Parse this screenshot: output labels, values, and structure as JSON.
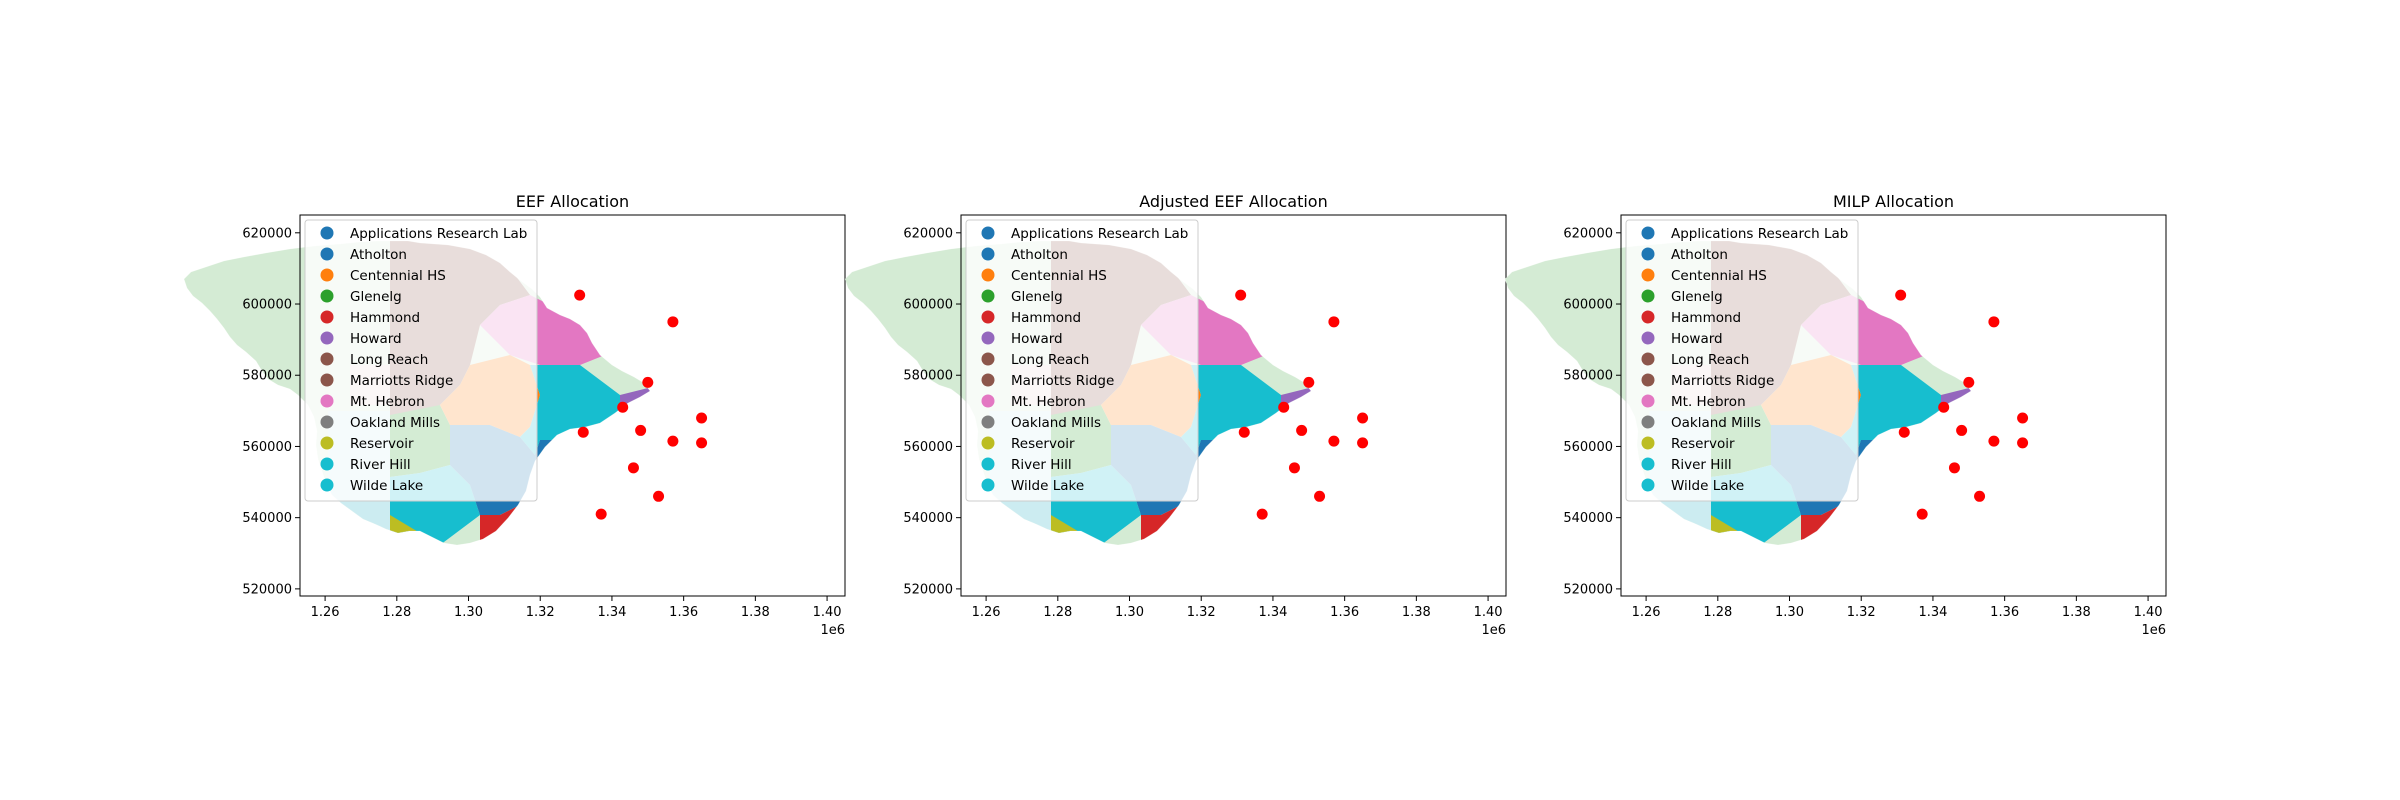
{
  "chart_data": [
    {
      "type": "choropleth-map",
      "title": "EEF Allocation",
      "xlim": [
        1.253,
        1.405
      ],
      "ylim": [
        518000,
        625000
      ],
      "x_ticks": [
        1.26,
        1.28,
        1.3,
        1.32,
        1.34,
        1.36,
        1.38,
        1.4
      ],
      "x_tick_labels": [
        "1.26",
        "1.28",
        "1.30",
        "1.32",
        "1.34",
        "1.36",
        "1.38",
        "1.40"
      ],
      "x_offset_label": "1e6",
      "y_ticks": [
        520000,
        540000,
        560000,
        580000,
        600000,
        620000
      ],
      "y_tick_labels": [
        "520000",
        "540000",
        "560000",
        "580000",
        "600000",
        "620000"
      ],
      "school_points": [
        {
          "x": 1.331,
          "y": 602500
        },
        {
          "x": 1.357,
          "y": 595000
        },
        {
          "x": 1.35,
          "y": 578000
        },
        {
          "x": 1.343,
          "y": 571000
        },
        {
          "x": 1.365,
          "y": 568000
        },
        {
          "x": 1.332,
          "y": 564000
        },
        {
          "x": 1.348,
          "y": 564500
        },
        {
          "x": 1.357,
          "y": 561500
        },
        {
          "x": 1.365,
          "y": 561000
        },
        {
          "x": 1.346,
          "y": 554000
        },
        {
          "x": 1.353,
          "y": 546000
        },
        {
          "x": 1.337,
          "y": 541000
        }
      ]
    },
    {
      "type": "choropleth-map",
      "title": "Adjusted EEF Allocation",
      "xlim": [
        1.253,
        1.405
      ],
      "ylim": [
        518000,
        625000
      ],
      "x_ticks": [
        1.26,
        1.28,
        1.3,
        1.32,
        1.34,
        1.36,
        1.38,
        1.4
      ],
      "x_tick_labels": [
        "1.26",
        "1.28",
        "1.30",
        "1.32",
        "1.34",
        "1.36",
        "1.38",
        "1.40"
      ],
      "x_offset_label": "1e6",
      "y_ticks": [
        520000,
        540000,
        560000,
        580000,
        600000,
        620000
      ],
      "y_tick_labels": [
        "520000",
        "540000",
        "560000",
        "580000",
        "600000",
        "620000"
      ],
      "school_points": [
        {
          "x": 1.331,
          "y": 602500
        },
        {
          "x": 1.357,
          "y": 595000
        },
        {
          "x": 1.35,
          "y": 578000
        },
        {
          "x": 1.343,
          "y": 571000
        },
        {
          "x": 1.365,
          "y": 568000
        },
        {
          "x": 1.332,
          "y": 564000
        },
        {
          "x": 1.348,
          "y": 564500
        },
        {
          "x": 1.357,
          "y": 561500
        },
        {
          "x": 1.365,
          "y": 561000
        },
        {
          "x": 1.346,
          "y": 554000
        },
        {
          "x": 1.353,
          "y": 546000
        },
        {
          "x": 1.337,
          "y": 541000
        }
      ]
    },
    {
      "type": "choropleth-map",
      "title": "MILP Allocation",
      "xlim": [
        1.253,
        1.405
      ],
      "ylim": [
        518000,
        625000
      ],
      "x_ticks": [
        1.26,
        1.28,
        1.3,
        1.32,
        1.34,
        1.36,
        1.38,
        1.4
      ],
      "x_tick_labels": [
        "1.26",
        "1.28",
        "1.30",
        "1.32",
        "1.34",
        "1.36",
        "1.38",
        "1.40"
      ],
      "x_offset_label": "1e6",
      "y_ticks": [
        520000,
        540000,
        560000,
        580000,
        600000,
        620000
      ],
      "y_tick_labels": [
        "520000",
        "540000",
        "560000",
        "580000",
        "600000",
        "620000"
      ],
      "school_points": [
        {
          "x": 1.331,
          "y": 602500
        },
        {
          "x": 1.357,
          "y": 595000
        },
        {
          "x": 1.35,
          "y": 578000
        },
        {
          "x": 1.343,
          "y": 571000
        },
        {
          "x": 1.365,
          "y": 568000
        },
        {
          "x": 1.332,
          "y": 564000
        },
        {
          "x": 1.348,
          "y": 564500
        },
        {
          "x": 1.357,
          "y": 561500
        },
        {
          "x": 1.365,
          "y": 561000
        },
        {
          "x": 1.346,
          "y": 554000
        },
        {
          "x": 1.353,
          "y": 546000
        },
        {
          "x": 1.337,
          "y": 541000
        }
      ]
    }
  ],
  "legend": {
    "placement": "upper-left",
    "entries": [
      {
        "name": "Applications Research Lab",
        "color": "#1f77b4"
      },
      {
        "name": "Atholton",
        "color": "#1f77b4"
      },
      {
        "name": "Centennial HS",
        "color": "#ff7f0e"
      },
      {
        "name": "Glenelg",
        "color": "#2ca02c"
      },
      {
        "name": "Hammond",
        "color": "#d62728"
      },
      {
        "name": "Howard",
        "color": "#9467bd"
      },
      {
        "name": "Long Reach",
        "color": "#8c564b"
      },
      {
        "name": "Marriotts Ridge",
        "color": "#8c564b"
      },
      {
        "name": "Mt. Hebron",
        "color": "#e377c2"
      },
      {
        "name": "Oakland Mills",
        "color": "#7f7f7f"
      },
      {
        "name": "Reservoir",
        "color": "#bcbd22"
      },
      {
        "name": "River Hill",
        "color": "#17becf"
      },
      {
        "name": "Wilde Lake",
        "color": "#17becf"
      }
    ]
  },
  "colors": {
    "school_point": "#ff0000",
    "western_region": "#d4ebd4",
    "pink_patch": "#ead6d6",
    "cyan_patch": "#ccecf1"
  }
}
